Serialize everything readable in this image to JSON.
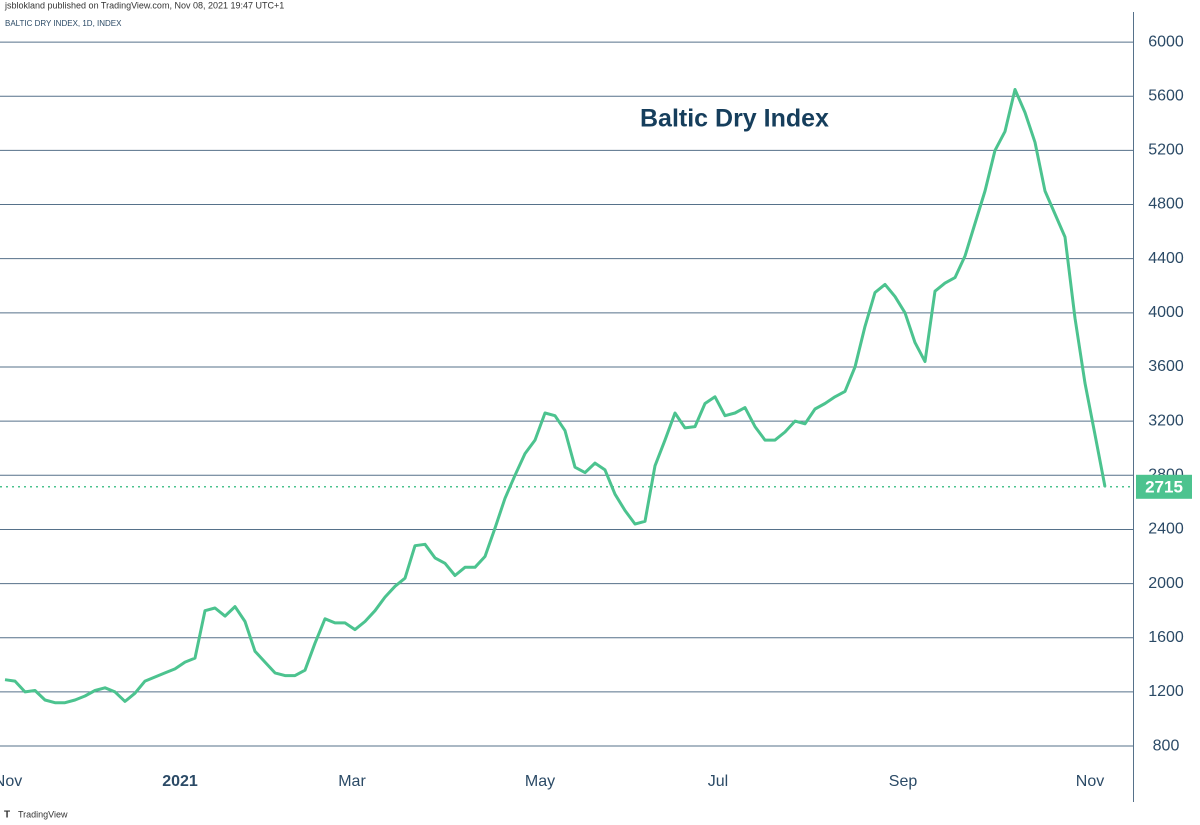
{
  "header": {
    "published": "jsblokland published on TradingView.com, Nov 08, 2021 19:47 UTC+1"
  },
  "chart_data": {
    "type": "line",
    "symbol": "BALTIC DRY INDEX, 1D, INDEX",
    "title": "Baltic Dry Index",
    "color": "#4cc38f",
    "grid": true,
    "values": [
      1290,
      1280,
      1200,
      1210,
      1140,
      1120,
      1120,
      1140,
      1170,
      1210,
      1230,
      1200,
      1130,
      1190,
      1280,
      1310,
      1340,
      1370,
      1420,
      1450,
      1800,
      1820,
      1760,
      1830,
      1720,
      1500,
      1420,
      1340,
      1320,
      1320,
      1360,
      1560,
      1740,
      1710,
      1710,
      1660,
      1720,
      1800,
      1900,
      1980,
      2040,
      2280,
      2290,
      2190,
      2150,
      2060,
      2120,
      2120,
      2200,
      2410,
      2630,
      2800,
      2960,
      3060,
      3260,
      3240,
      3130,
      2860,
      2820,
      2890,
      2840,
      2660,
      2540,
      2440,
      2460,
      2870,
      3060,
      3260,
      3150,
      3160,
      3330,
      3380,
      3240,
      3260,
      3300,
      3160,
      3060,
      3060,
      3120,
      3200,
      3180,
      3290,
      3330,
      3380,
      3420,
      3600,
      3900,
      4150,
      4210,
      4120,
      4000,
      3780,
      3640,
      4160,
      4220,
      4260,
      4420,
      4660,
      4900,
      5200,
      5340,
      5650,
      5480,
      5260,
      4900,
      4730,
      4560,
      3960,
      3480,
      3100,
      2715
    ],
    "xlim": [
      -0.5,
      112.8
    ],
    "xticks": [
      {
        "value": 0.3,
        "label": "Nov"
      },
      {
        "value": 17.5,
        "label": "2021"
      },
      {
        "value": 34.7,
        "label": "Mar"
      },
      {
        "value": 53.5,
        "label": "May"
      },
      {
        "value": 71.3,
        "label": "Jul"
      },
      {
        "value": 89.8,
        "label": "Sep"
      },
      {
        "value": 108.5,
        "label": "Nov"
      }
    ],
    "ylim": [
      660,
      6200
    ],
    "yticks": [
      800,
      1200,
      1600,
      2000,
      2400,
      2800,
      3200,
      3600,
      4000,
      4400,
      4800,
      5200,
      5600,
      6000
    ]
  },
  "footer": {
    "brand": "TradingView"
  }
}
